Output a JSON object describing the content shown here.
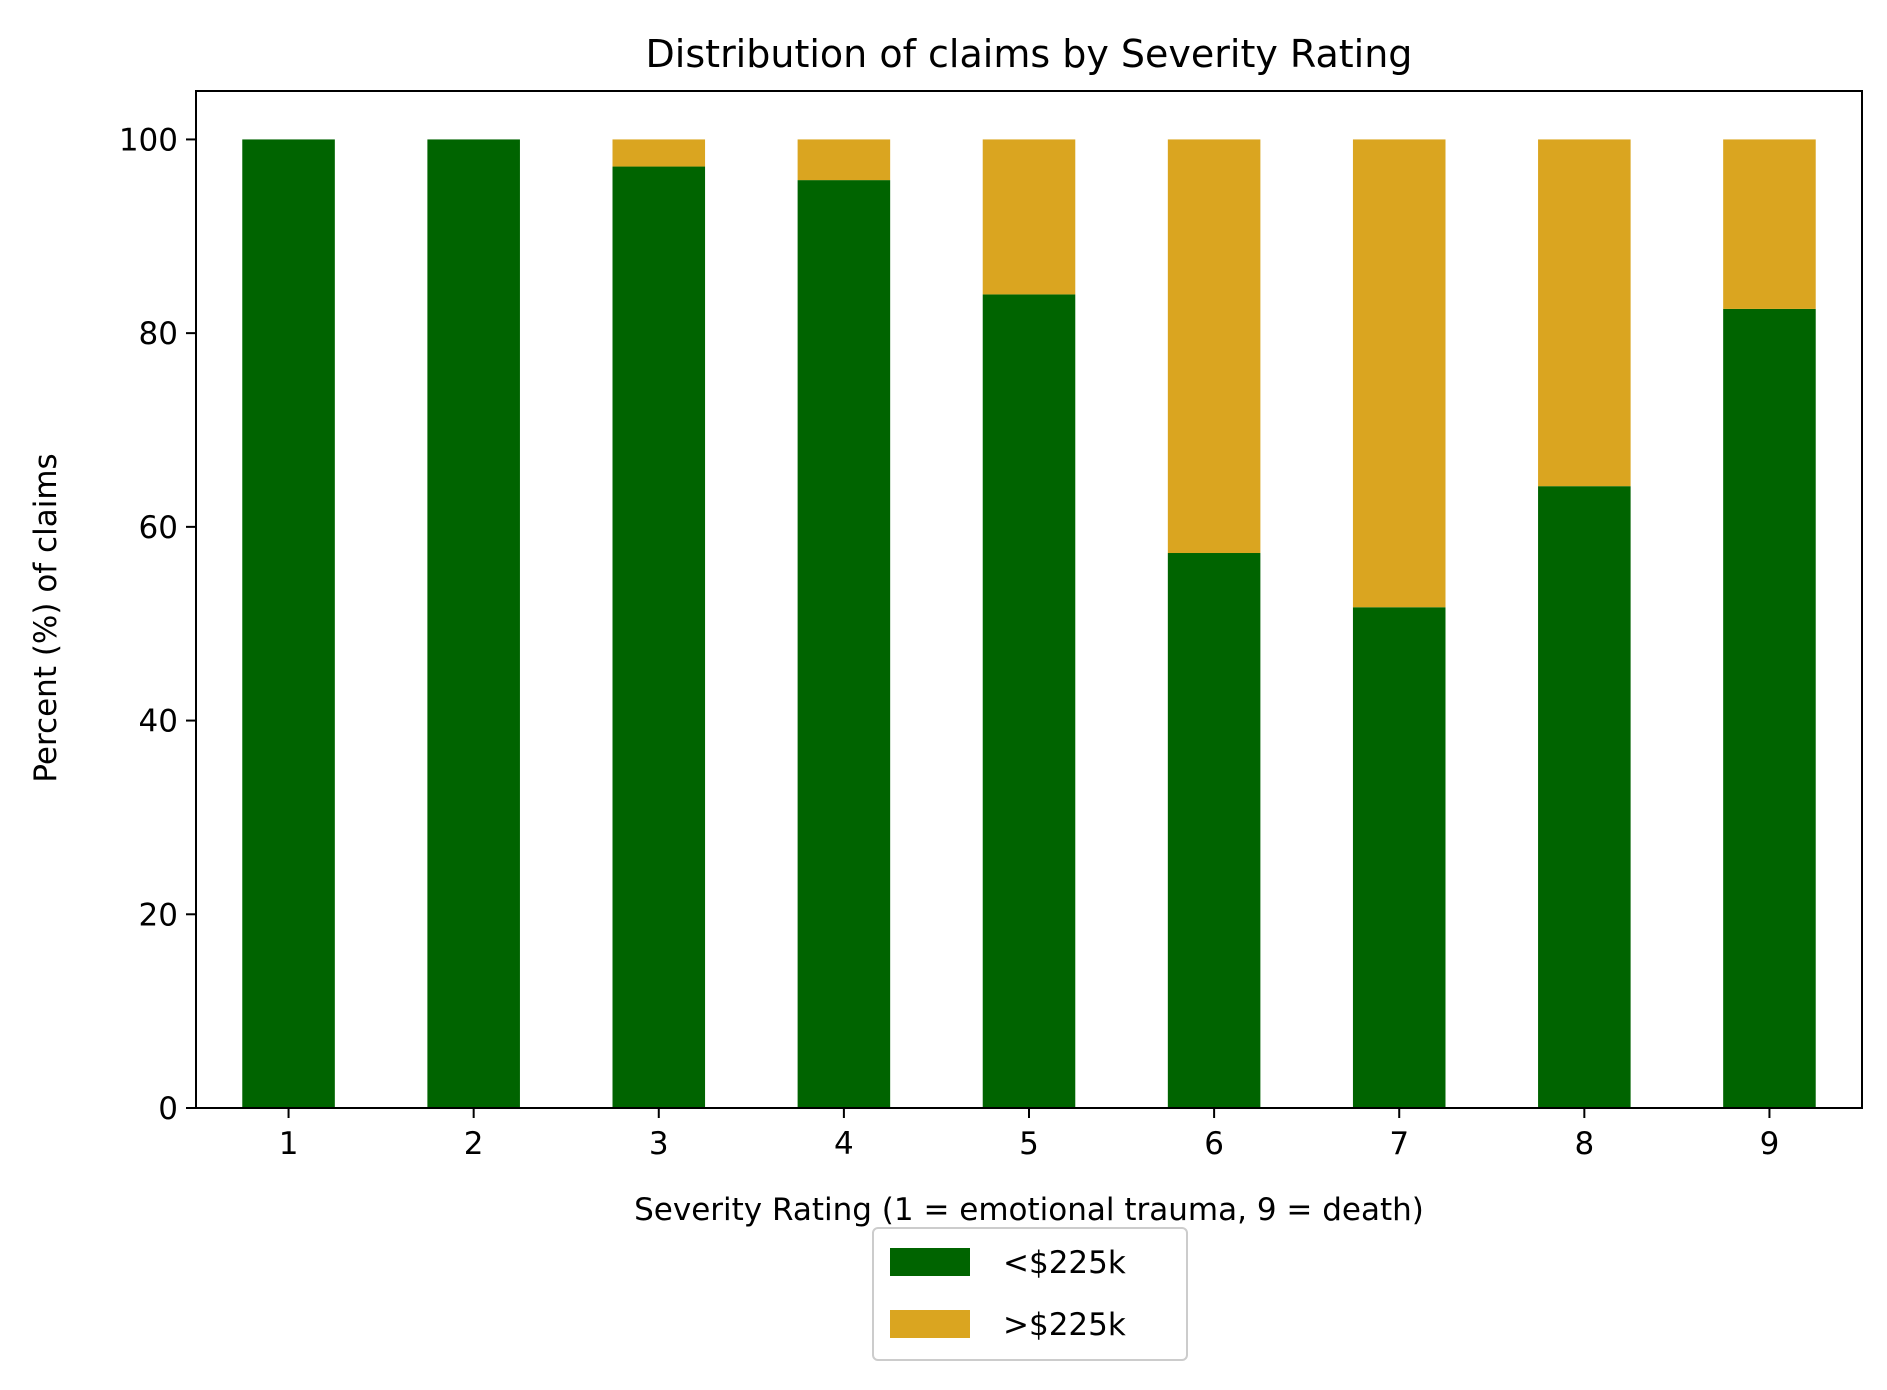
{
  "chart_data": {
    "type": "bar",
    "stacked": true,
    "title": "Distribution of claims by Severity Rating",
    "xlabel": "Severity Rating (1 = emotional trauma, 9 = death)",
    "ylabel": "Percent (%) of claims",
    "categories": [
      "1",
      "2",
      "3",
      "4",
      "5",
      "6",
      "7",
      "8",
      "9"
    ],
    "series": [
      {
        "name": "<$225k",
        "color": "#006400",
        "values": [
          100,
          100,
          97.2,
          95.8,
          84.0,
          57.3,
          51.7,
          64.2,
          82.5
        ]
      },
      {
        "name": ">$225k",
        "color": "#DAA520",
        "values": [
          0,
          0,
          2.8,
          4.2,
          16.0,
          42.7,
          48.3,
          35.8,
          17.5
        ]
      }
    ],
    "ylim": [
      0,
      105
    ],
    "yticks": [
      "0",
      "20",
      "40",
      "60",
      "80",
      "100"
    ],
    "grid": false,
    "legend": "below-center"
  }
}
